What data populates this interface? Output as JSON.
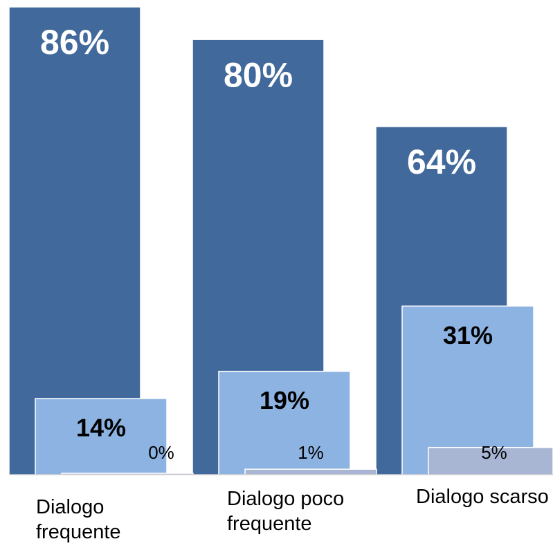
{
  "chart_data": {
    "type": "bar",
    "categories": [
      "Dialogo frequente",
      "Dialogo poco frequente",
      "Dialogo scarso"
    ],
    "series": [
      {
        "color": "#41699b",
        "values": [
          86,
          80,
          64
        ],
        "value_labels": [
          "86%",
          "80%",
          "64%"
        ]
      },
      {
        "color": "#8db3e2",
        "values": [
          14,
          19,
          31
        ],
        "value_labels": [
          "14%",
          "19%",
          "31%"
        ]
      },
      {
        "color": "#a8b6d4",
        "values": [
          0,
          1,
          5
        ],
        "value_labels": [
          "0%",
          "1%",
          "5%"
        ]
      }
    ]
  }
}
